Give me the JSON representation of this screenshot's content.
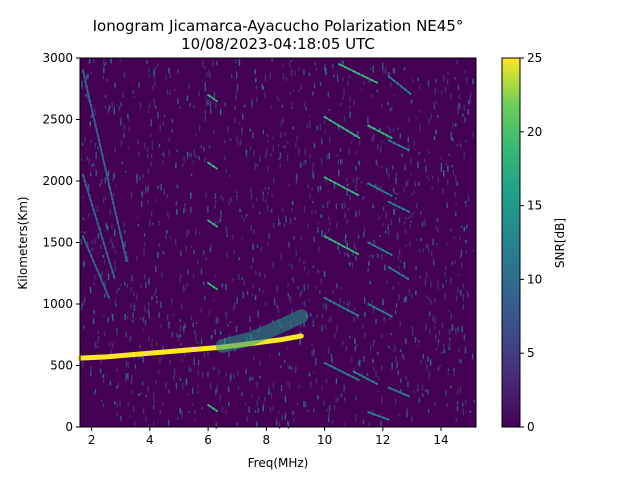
{
  "chart_data": {
    "type": "heatmap",
    "title": "Ionogram Jicamarca-Ayacucho Polarization NE45°",
    "subtitle": "10/08/2023-04:18:05 UTC",
    "xlabel": "Freq(MHz)",
    "ylabel": "Kilometers(Km)",
    "colorbar_label": "SNR[dB]",
    "colormap": "viridis",
    "xlim": [
      1.6,
      15.2
    ],
    "ylim": [
      0,
      3000
    ],
    "clim": [
      0,
      25
    ],
    "x_ticks": [
      2,
      4,
      6,
      8,
      10,
      12,
      14
    ],
    "y_ticks": [
      0,
      500,
      1000,
      1500,
      2000,
      2500,
      3000
    ],
    "colorbar_ticks": [
      0,
      5,
      10,
      15,
      20,
      25
    ],
    "background_snr_db": 2,
    "echo_traces": [
      {
        "name": "",
        "points": [
          [
            1.6,
            560
          ],
          [
            2.5,
            570
          ],
          [
            3.5,
            590
          ],
          [
            4.5,
            610
          ],
          [
            5.5,
            630
          ],
          [
            6.5,
            650
          ],
          [
            7.5,
            680
          ],
          [
            8.5,
            710
          ],
          [
            9.2,
            740
          ]
        ],
        "snr_db": 24
      },
      {
        "name": "",
        "points": [
          [
            6.5,
            660
          ],
          [
            7.5,
            720
          ],
          [
            8.5,
            820
          ],
          [
            9.2,
            900
          ]
        ],
        "snr_db": 16
      }
    ],
    "oblique_traces": [
      {
        "points": [
          [
            1.7,
            2900
          ],
          [
            3.2,
            1350
          ]
        ],
        "snr_db": 8
      },
      {
        "points": [
          [
            1.7,
            2050
          ],
          [
            2.8,
            1200
          ]
        ],
        "snr_db": 8
      },
      {
        "points": [
          [
            1.7,
            1550
          ],
          [
            2.6,
            1050
          ]
        ],
        "snr_db": 8
      },
      {
        "points": [
          [
            6.0,
            2700
          ],
          [
            6.3,
            2650
          ]
        ],
        "snr_db": 20
      },
      {
        "points": [
          [
            6.0,
            2150
          ],
          [
            6.3,
            2100
          ]
        ],
        "snr_db": 20
      },
      {
        "points": [
          [
            6.0,
            1680
          ],
          [
            6.3,
            1630
          ]
        ],
        "snr_db": 20
      },
      {
        "points": [
          [
            6.0,
            1170
          ],
          [
            6.3,
            1120
          ]
        ],
        "snr_db": 20
      },
      {
        "points": [
          [
            6.0,
            180
          ],
          [
            6.3,
            130
          ]
        ],
        "snr_db": 20
      },
      {
        "points": [
          [
            10.0,
            2520
          ],
          [
            11.2,
            2350
          ]
        ],
        "snr_db": 18
      },
      {
        "points": [
          [
            10.0,
            2030
          ],
          [
            11.2,
            1880
          ]
        ],
        "snr_db": 18
      },
      {
        "points": [
          [
            10.0,
            1550
          ],
          [
            11.2,
            1400
          ]
        ],
        "snr_db": 18
      },
      {
        "points": [
          [
            10.0,
            1050
          ],
          [
            11.2,
            900
          ]
        ],
        "snr_db": 14
      },
      {
        "points": [
          [
            10.0,
            520
          ],
          [
            11.2,
            380
          ]
        ],
        "snr_db": 14
      },
      {
        "points": [
          [
            10.5,
            2950
          ],
          [
            11.8,
            2800
          ]
        ],
        "snr_db": 18
      },
      {
        "points": [
          [
            11.5,
            2450
          ],
          [
            12.3,
            2350
          ]
        ],
        "snr_db": 18
      },
      {
        "points": [
          [
            11.5,
            1980
          ],
          [
            12.3,
            1880
          ]
        ],
        "snr_db": 14
      },
      {
        "points": [
          [
            11.5,
            1500
          ],
          [
            12.3,
            1400
          ]
        ],
        "snr_db": 12
      },
      {
        "points": [
          [
            11.5,
            1000
          ],
          [
            12.3,
            900
          ]
        ],
        "snr_db": 12
      },
      {
        "points": [
          [
            11.0,
            450
          ],
          [
            11.8,
            350
          ]
        ],
        "snr_db": 14
      },
      {
        "points": [
          [
            12.2,
            2850
          ],
          [
            13.0,
            2700
          ]
        ],
        "snr_db": 14
      },
      {
        "points": [
          [
            12.2,
            2330
          ],
          [
            12.9,
            2250
          ]
        ],
        "snr_db": 14
      },
      {
        "points": [
          [
            12.2,
            1830
          ],
          [
            12.9,
            1750
          ]
        ],
        "snr_db": 12
      },
      {
        "points": [
          [
            12.2,
            1300
          ],
          [
            12.9,
            1200
          ]
        ],
        "snr_db": 12
      },
      {
        "points": [
          [
            12.2,
            320
          ],
          [
            12.9,
            250
          ]
        ],
        "snr_db": 12
      },
      {
        "points": [
          [
            11.5,
            120
          ],
          [
            12.2,
            60
          ]
        ],
        "snr_db": 14
      }
    ]
  }
}
